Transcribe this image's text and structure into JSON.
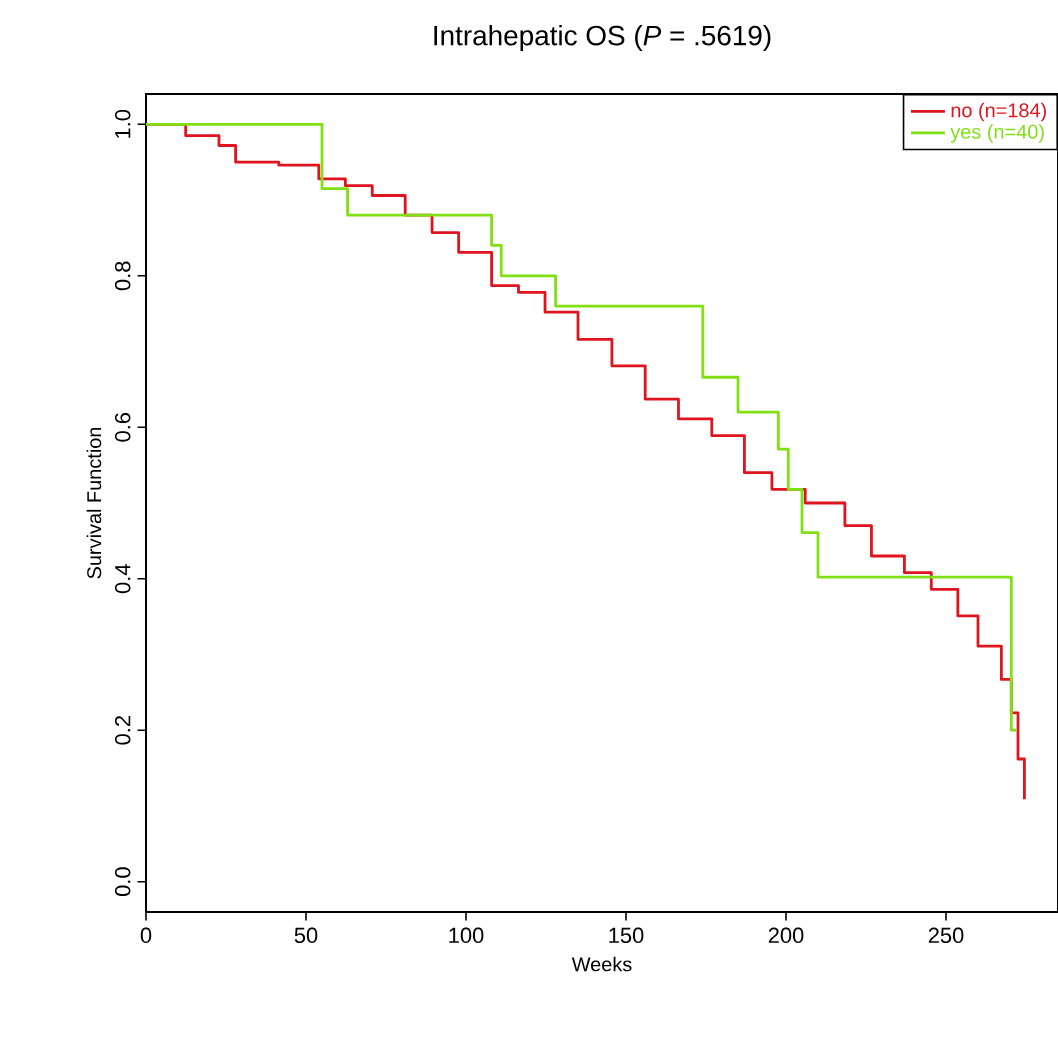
{
  "chart_data": {
    "type": "step",
    "title": "Intrahepatic OS (*P* = .5619)",
    "xlabel": "Weeks",
    "ylabel": "Survival Function",
    "xlim": [
      0,
      285
    ],
    "ylim": [
      -0.04,
      1.04
    ],
    "xticks": [
      0,
      50,
      100,
      150,
      200,
      250
    ],
    "yticks": [
      {
        "value": 0,
        "label": "0.0"
      },
      {
        "value": 0.2,
        "label": "0.2"
      },
      {
        "value": 0.4,
        "label": "0.4"
      },
      {
        "value": 0.6,
        "label": "0.6"
      },
      {
        "value": 0.8,
        "label": "0.8"
      },
      {
        "value": 1,
        "label": "1.0"
      }
    ],
    "legend": "top right",
    "grid": false,
    "series": [
      {
        "name": "no (n=184)",
        "color": "#e0141e",
        "x": [
          0,
          12.4,
          22.8,
          28,
          41.5,
          54,
          62.3,
          70.7,
          81,
          89.4,
          97.7,
          108,
          116.4,
          124.7,
          135,
          145.6,
          156,
          166.4,
          176.8,
          187,
          195.6,
          206,
          218.4,
          226.7,
          237,
          245.4,
          253.7,
          260,
          267.3,
          270.4,
          272.5,
          274.5
        ],
        "values": [
          1.0,
          0.985,
          0.972,
          0.95,
          0.946,
          0.928,
          0.919,
          0.906,
          0.88,
          0.857,
          0.831,
          0.787,
          0.778,
          0.752,
          0.716,
          0.681,
          0.637,
          0.611,
          0.589,
          0.54,
          0.518,
          0.5,
          0.47,
          0.43,
          0.408,
          0.386,
          0.351,
          0.311,
          0.267,
          0.223,
          0.162,
          0.109
        ]
      },
      {
        "name": "yes (n=40)",
        "color": "#80e012",
        "x": [
          0,
          55,
          63,
          108,
          111,
          128,
          174,
          185,
          197.6,
          200.7,
          205,
          210,
          270.4,
          272
        ],
        "values": [
          1.0,
          0.915,
          0.88,
          0.84,
          0.8,
          0.76,
          0.666,
          0.62,
          0.571,
          0.518,
          0.461,
          0.402,
          0.2,
          0.2
        ]
      }
    ]
  }
}
